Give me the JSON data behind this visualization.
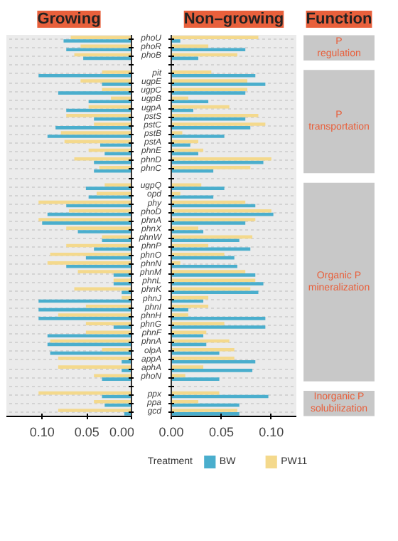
{
  "chart_data": [
    {
      "type": "bar",
      "orientation": "horizontal",
      "title": "Growing",
      "categories": [
        "phoU",
        "phoR",
        "phoB",
        null,
        "pit",
        "ugpE",
        "ugpC",
        "ugpB",
        "ugpA",
        "pstS",
        "pstC",
        "pstB",
        "pstA",
        "phnE",
        "phnD",
        "phnC",
        null,
        "ugpQ",
        "opd",
        "phy",
        "phoD",
        "phnA",
        "phnX",
        "phnW",
        "phnP",
        "phnO",
        "phnN",
        "phnM",
        "phnL",
        "phnK",
        "phnJ",
        "phnI",
        "phnH",
        "phnG",
        "phnF",
        "phnA",
        "olpA",
        "appA",
        "aphA",
        "phoN",
        null,
        "ppx",
        "ppa",
        "gcd"
      ],
      "series": [
        {
          "color": "#4aaecd",
          "values": [
            0.076,
            0.073,
            0.054,
            null,
            0.104,
            0.033,
            0.082,
            0.048,
            0.073,
            0.042,
            0.085,
            0.094,
            0.035,
            0.03,
            0.042,
            0.042,
            null,
            0.051,
            0.048,
            0.073,
            0.094,
            0.1,
            0.06,
            0.033,
            0.042,
            0.051,
            0.073,
            0.02,
            0.02,
            0.011,
            0.104,
            0.104,
            0.104,
            0.02,
            0.094,
            0.094,
            0.091,
            0.011,
            0.011,
            0.033,
            null,
            0.033,
            0.03,
            0.008
          ]
        },
        {
          "color": "#f4d98c",
          "values": [
            0.068,
            0.057,
            0.064,
            null,
            0.033,
            0.057,
            0.033,
            0.023,
            0.048,
            0.073,
            0.042,
            0.079,
            0.075,
            0.048,
            0.064,
            0.036,
            null,
            0.03,
            0.039,
            0.104,
            0.07,
            0.104,
            0.073,
            0.033,
            0.073,
            0.091,
            0.094,
            0.06,
            0.02,
            0.064,
            0.011,
            0.051,
            0.082,
            0.051,
            0.051,
            0.091,
            0.033,
            0.082,
            0.082,
            0.042,
            null,
            0.104,
            0.042,
            0.082
          ]
        }
      ],
      "xlim": [
        0.14,
        0
      ],
      "xticks": [
        {
          "value": 0,
          "label": "0.00"
        },
        {
          "value": 0.05,
          "label": "0.05"
        },
        {
          "value": 0.1,
          "label": "0.10"
        }
      ],
      "grid": "y",
      "tick_labels": "x",
      "legend": false
    },
    {
      "type": "bar",
      "orientation": "horizontal",
      "title": "Non–growing",
      "categories": [
        "phoU",
        "phoR",
        "phoB",
        null,
        "pit",
        "ugpE",
        "ugpC",
        "ugpB",
        "ugpA",
        "pstS",
        "pstC",
        "pstB",
        "pstA",
        "phnE",
        "phnD",
        "phnC",
        null,
        "ugpQ",
        "opd",
        "phy",
        "phoD",
        "phnA",
        "phnX",
        "phnW",
        "phnP",
        "phnO",
        "phnN",
        "phnM",
        "phnL",
        "phnK",
        "phnJ",
        "phnI",
        "phnH",
        "phnG",
        "phnF",
        "phnA",
        "olpA",
        "appA",
        "aphA",
        "phoN",
        null,
        "ppx",
        "ppa",
        "gcd"
      ],
      "series": [
        {
          "name": "BW",
          "color": "#4aaecd",
          "values": [
            0.009,
            0.074,
            0.027,
            null,
            0.084,
            0.094,
            0.074,
            0.037,
            0.022,
            0.074,
            0.079,
            0.053,
            0.019,
            0.027,
            0.092,
            0.042,
            null,
            0.053,
            0.042,
            0.084,
            0.102,
            0.074,
            0.032,
            0.068,
            0.079,
            0.063,
            0.066,
            0.084,
            0.092,
            0.087,
            0.032,
            0.017,
            0.094,
            0.094,
            0.032,
            0.035,
            0.048,
            0.084,
            0.081,
            0.048,
            null,
            0.097,
            0.068,
            0.068
          ]
        },
        {
          "name": "PW11",
          "color": "#f4d98c",
          "values": [
            0.087,
            0.037,
            0.066,
            null,
            0.04,
            0.076,
            0.076,
            0.017,
            0.058,
            0.087,
            0.094,
            0.011,
            0.027,
            0.032,
            0.1,
            0.079,
            null,
            0.03,
            0.009,
            0.074,
            0.1,
            0.084,
            0.027,
            0.081,
            0.037,
            0.053,
            0.009,
            0.074,
            0.084,
            0.079,
            0.037,
            0.037,
            0.017,
            0.053,
            0.035,
            0.058,
            0.063,
            0.063,
            0.032,
            0.014,
            null,
            0.048,
            0.027,
            0.066
          ]
        }
      ],
      "xlim": [
        0,
        0.125
      ],
      "xticks": [
        {
          "value": 0,
          "label": "0.00"
        },
        {
          "value": 0.05,
          "label": "0.05"
        },
        {
          "value": 0.1,
          "label": "0.10"
        }
      ],
      "grid": "y",
      "legend": "bottom",
      "legend_title": "Treatment"
    },
    {
      "type": "other",
      "title": "Function",
      "annotations": [
        "P regulation",
        "P transportation",
        "Organic P mineralization",
        "Inorganic P solubilization"
      ]
    }
  ]
}
